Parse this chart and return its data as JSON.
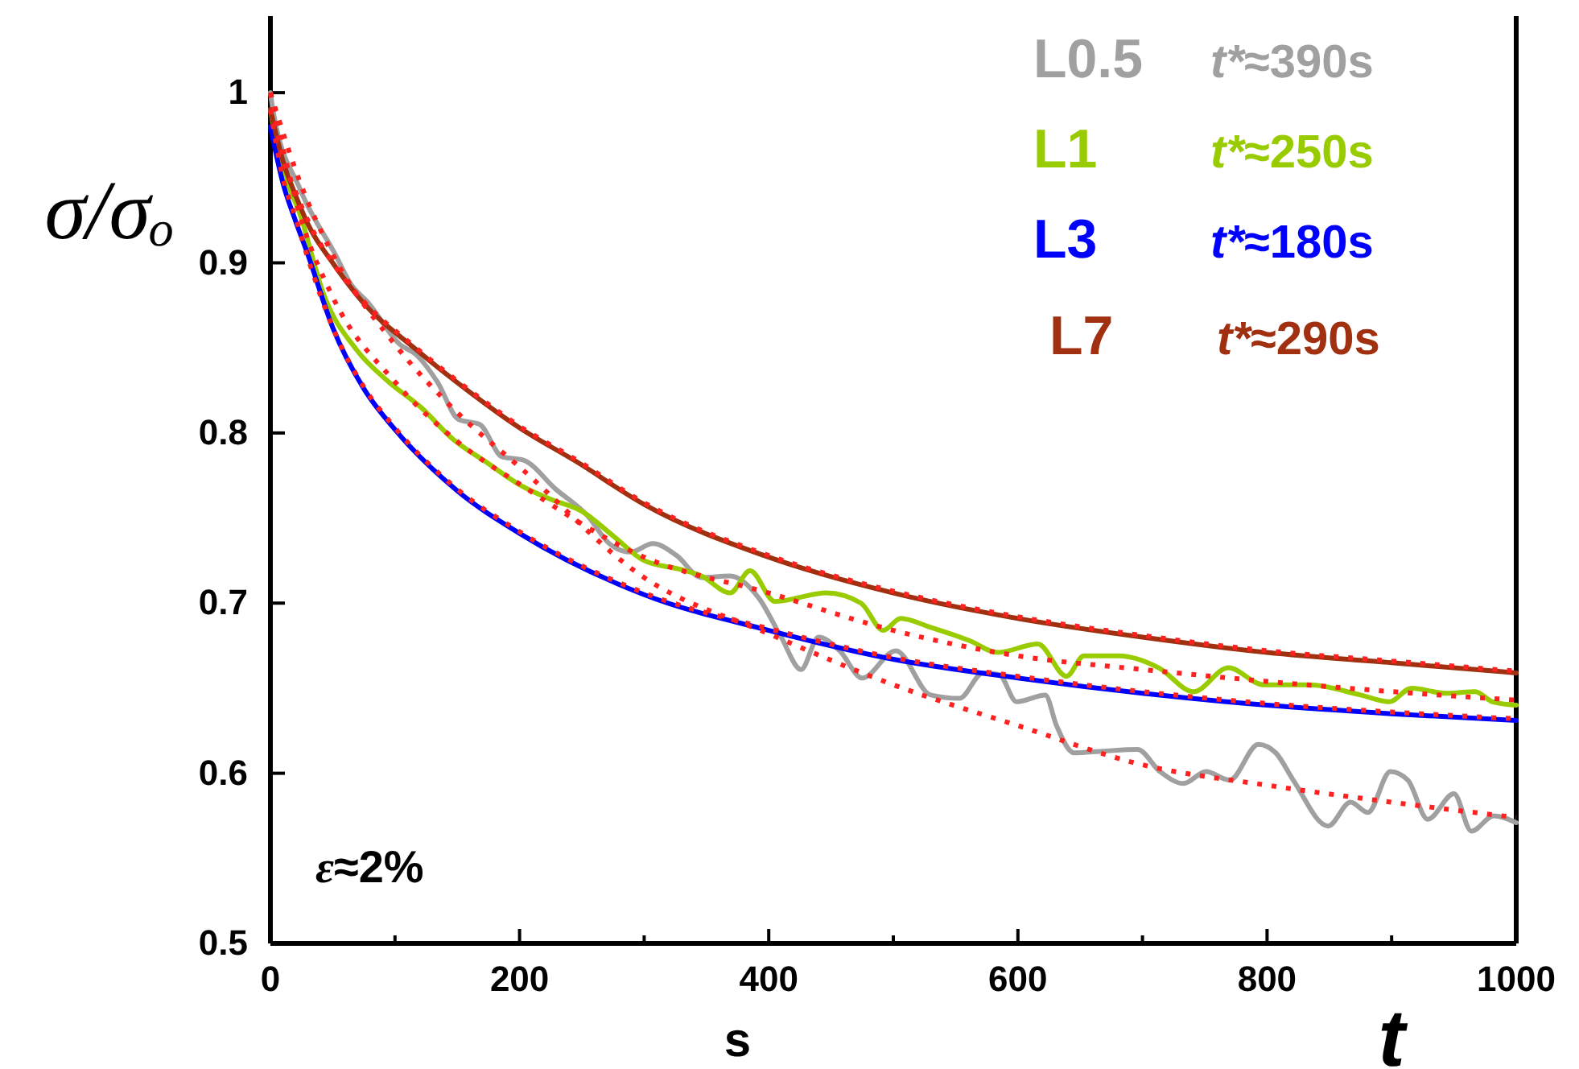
{
  "chart_data": {
    "type": "line",
    "ylabel": "σ/σₒ",
    "xlabel": "t",
    "annotations": [
      "ε≈2%",
      "s",
      "t*≈390s",
      "t*≈250s",
      "t*≈180s",
      "t*≈290s"
    ],
    "xlim": [
      0,
      1000
    ],
    "ylim": [
      0.5,
      1.045
    ],
    "xticks": [
      0,
      {
        "value": 100,
        "label": null
      },
      200,
      {
        "value": 300,
        "label": null
      },
      400,
      {
        "value": 500,
        "label": null
      },
      600,
      {
        "value": 700,
        "label": null
      },
      800,
      {
        "value": 900,
        "label": null
      },
      1000
    ],
    "yticks": [
      0.5,
      0.6,
      0.7,
      0.8,
      0.9,
      {
        "value": 1,
        "label": "1"
      }
    ],
    "grid": false,
    "legend": "top right",
    "marker": "none",
    "series": [
      {
        "name": "L0.5",
        "color": "#a0a0a0",
        "line_style": "solid",
        "x": [
          0,
          2,
          24,
          52,
          65,
          78,
          104,
          117,
          134,
          151,
          168,
          186,
          203,
          229,
          255,
          272,
          289,
          307,
          326,
          346,
          369,
          392,
          410,
          426,
          440,
          457,
          475,
          502,
          530,
          553,
          572,
          585,
          599,
          622,
          631,
          645,
          668,
          696,
          714,
          733,
          751,
          770,
          793,
          807,
          821,
          849,
          867,
          881,
          899,
          913,
          929,
          950,
          964,
          982,
          1000
        ],
        "values": [
          1.0,
          0.99,
          0.943,
          0.905,
          0.887,
          0.877,
          0.852,
          0.846,
          0.83,
          0.808,
          0.805,
          0.786,
          0.784,
          0.767,
          0.751,
          0.735,
          0.73,
          0.735,
          0.728,
          0.715,
          0.716,
          0.703,
          0.68,
          0.661,
          0.68,
          0.672,
          0.656,
          0.672,
          0.646,
          0.644,
          0.659,
          0.658,
          0.642,
          0.646,
          0.628,
          0.612,
          0.613,
          0.614,
          0.601,
          0.594,
          0.601,
          0.596,
          0.617,
          0.612,
          0.596,
          0.569,
          0.583,
          0.577,
          0.601,
          0.596,
          0.573,
          0.588,
          0.566,
          0.575,
          0.571
        ]
      },
      {
        "name": "L1",
        "color": "#99cc00",
        "line_style": "solid",
        "x": [
          0,
          8,
          24,
          43,
          69,
          95,
          121,
          147,
          173,
          199,
          225,
          250,
          276,
          300,
          328,
          346,
          369,
          385,
          405,
          446,
          474,
          492,
          506,
          529,
          561,
          584,
          616,
          639,
          653,
          681,
          713,
          741,
          769,
          797,
          834,
          875,
          898,
          916,
          944,
          967,
          981,
          1000
        ],
        "values": [
          0.99,
          0.96,
          0.928,
          0.881,
          0.849,
          0.83,
          0.815,
          0.796,
          0.783,
          0.77,
          0.761,
          0.754,
          0.739,
          0.725,
          0.72,
          0.716,
          0.706,
          0.719,
          0.701,
          0.706,
          0.7,
          0.684,
          0.691,
          0.686,
          0.678,
          0.671,
          0.676,
          0.657,
          0.669,
          0.669,
          0.662,
          0.648,
          0.662,
          0.652,
          0.652,
          0.646,
          0.642,
          0.65,
          0.647,
          0.648,
          0.642,
          0.64
        ]
      },
      {
        "name": "L3",
        "color": "#0000ff",
        "line_style": "solid",
        "x": [
          0,
          10,
          20,
          30,
          50,
          75,
          100,
          150,
          200,
          300,
          400,
          500,
          600,
          700,
          800,
          900,
          1000
        ],
        "values": [
          0.98,
          0.947,
          0.925,
          0.905,
          0.862,
          0.826,
          0.802,
          0.766,
          0.741,
          0.705,
          0.684,
          0.667,
          0.656,
          0.647,
          0.64,
          0.635,
          0.631
        ]
      },
      {
        "name": "L7",
        "color": "#a03010",
        "line_style": "solid",
        "x": [
          0,
          10,
          20,
          32,
          50,
          74,
          117,
          160,
          200,
          246,
          300,
          400,
          500,
          600,
          700,
          800,
          900,
          1000
        ],
        "values": [
          0.99,
          0.96,
          0.94,
          0.92,
          0.9,
          0.877,
          0.849,
          0.824,
          0.803,
          0.783,
          0.758,
          0.727,
          0.706,
          0.691,
          0.68,
          0.671,
          0.665,
          0.659
        ]
      },
      {
        "color": "#ff2020",
        "line_style": "dotted",
        "x": [
          0,
          25,
          50,
          100,
          150,
          200,
          300,
          400,
          500,
          600,
          700,
          800,
          900,
          1000
        ],
        "values": [
          1.0,
          0.945,
          0.905,
          0.852,
          0.812,
          0.78,
          0.715,
          0.682,
          0.652,
          0.628,
          0.605,
          0.593,
          0.583,
          0.574
        ]
      },
      {
        "color": "#ff2020",
        "line_style": "dotted",
        "x": [
          0,
          25,
          50,
          100,
          150,
          200,
          300,
          400,
          500,
          600,
          700,
          800,
          900,
          1000
        ],
        "values": [
          1.0,
          0.925,
          0.88,
          0.83,
          0.795,
          0.77,
          0.727,
          0.706,
          0.684,
          0.669,
          0.661,
          0.654,
          0.648,
          0.643
        ]
      },
      {
        "color": "#ff2020",
        "line_style": "dotted",
        "x": [
          0,
          10,
          20,
          30,
          50,
          75,
          100,
          150,
          200,
          300,
          400,
          500,
          600,
          700,
          800,
          900,
          1000
        ],
        "values": [
          0.99,
          0.95,
          0.927,
          0.903,
          0.862,
          0.827,
          0.803,
          0.767,
          0.742,
          0.706,
          0.685,
          0.668,
          0.657,
          0.648,
          0.641,
          0.636,
          0.632
        ]
      },
      {
        "color": "#ff2020",
        "line_style": "dotted",
        "x": [
          0,
          10,
          20,
          32,
          50,
          74,
          117,
          160,
          200,
          246,
          300,
          400,
          500,
          600,
          700,
          800,
          900,
          1000
        ],
        "values": [
          1.0,
          0.962,
          0.942,
          0.922,
          0.9,
          0.878,
          0.85,
          0.825,
          0.804,
          0.784,
          0.759,
          0.728,
          0.707,
          0.692,
          0.681,
          0.672,
          0.666,
          0.66
        ]
      }
    ]
  }
}
